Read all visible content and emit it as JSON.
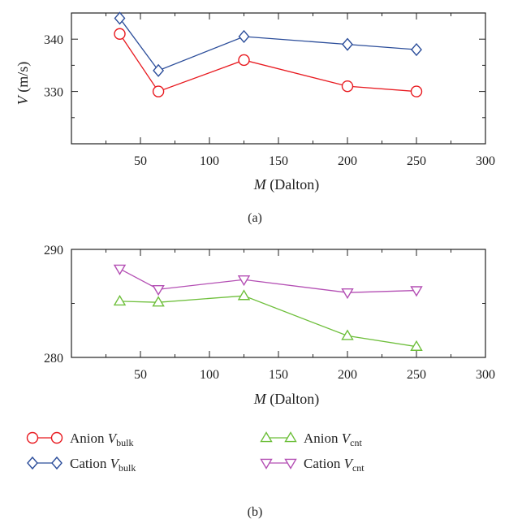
{
  "chart_data": [
    {
      "type": "line",
      "panel_label": "(a)",
      "xlabel": {
        "var": "M",
        "rest": " (Dalton)"
      },
      "ylabel": {
        "var": "V",
        "rest": " (m/s)"
      },
      "xlim": [
        0,
        300
      ],
      "ylim": [
        320,
        345
      ],
      "xticks": [
        50,
        100,
        150,
        200,
        250,
        300
      ],
      "yticks": [
        330,
        340
      ],
      "grid": false,
      "series": [
        {
          "name": {
            "prefix": "Anion ",
            "var": "V",
            "sub": "bulk"
          },
          "color": "#e8191f",
          "marker": "circle",
          "x": [
            35,
            63,
            125,
            200,
            250
          ],
          "values": [
            341,
            330,
            336,
            331,
            330
          ]
        },
        {
          "name": {
            "prefix": "Cation ",
            "var": "V",
            "sub": "bulk"
          },
          "color": "#2b4d9a",
          "marker": "diamond",
          "x": [
            35,
            63,
            125,
            200,
            250
          ],
          "values": [
            344,
            334,
            340.5,
            339,
            338
          ]
        }
      ]
    },
    {
      "type": "line",
      "panel_label": "(b)",
      "xlabel": {
        "var": "M",
        "rest": " (Dalton)"
      },
      "ylabel": {
        "var": "",
        "rest": ""
      },
      "xlim": [
        0,
        300
      ],
      "ylim": [
        280,
        290
      ],
      "xticks": [
        50,
        100,
        150,
        200,
        250,
        300
      ],
      "yticks": [
        280,
        290
      ],
      "grid": false,
      "series": [
        {
          "name": {
            "prefix": "Anion ",
            "var": "V",
            "sub": "cnt"
          },
          "color": "#6ebf3b",
          "marker": "triangle-up",
          "x": [
            35,
            63,
            125,
            200,
            250
          ],
          "values": [
            285.2,
            285.1,
            285.7,
            282.0,
            281.0
          ]
        },
        {
          "name": {
            "prefix": "Cation ",
            "var": "V",
            "sub": "cnt"
          },
          "color": "#b44fb4",
          "marker": "triangle-down",
          "x": [
            35,
            63,
            125,
            200,
            250
          ],
          "values": [
            288.2,
            286.3,
            287.2,
            286.0,
            286.2
          ]
        }
      ]
    }
  ]
}
